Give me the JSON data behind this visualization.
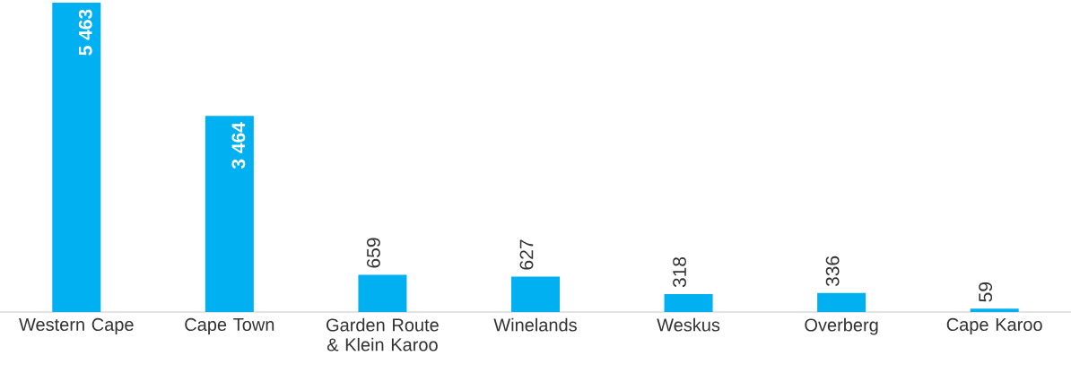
{
  "chart_data": {
    "type": "bar",
    "categories": [
      "Western Cape",
      "Cape Town",
      "Garden Route & Klein Karoo",
      "Winelands",
      "Weskus",
      "Overberg",
      "Cape Karoo"
    ],
    "values": [
      5463,
      3464,
      659,
      627,
      318,
      336,
      59
    ],
    "value_labels": [
      "5 463",
      "3 464",
      "659",
      "627",
      "318",
      "336",
      "59"
    ],
    "color": "#00b0f0"
  }
}
